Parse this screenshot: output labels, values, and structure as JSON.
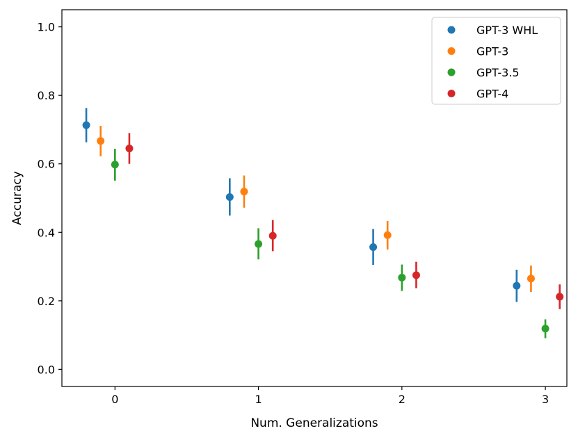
{
  "chart_data": {
    "type": "scatter",
    "title": "",
    "xlabel": "Num. Generalizations",
    "ylabel": "Accuracy",
    "xlim": [
      -0.37,
      3.15
    ],
    "ylim": [
      -0.05,
      1.05
    ],
    "xticks": [
      {
        "value": 0,
        "label": "0"
      },
      {
        "value": 1,
        "label": "1"
      },
      {
        "value": 2,
        "label": "2"
      },
      {
        "value": 3,
        "label": "3"
      }
    ],
    "yticks": [
      {
        "value": 0.0,
        "label": "0.0"
      },
      {
        "value": 0.2,
        "label": "0.2"
      },
      {
        "value": 0.4,
        "label": "0.4"
      },
      {
        "value": 0.6,
        "label": "0.6"
      },
      {
        "value": 0.8,
        "label": "0.8"
      },
      {
        "value": 1.0,
        "label": "1.0"
      }
    ],
    "grid": false,
    "legend_position": "top-right",
    "series": [
      {
        "name": "GPT-3 WHL",
        "color": "#1f77b4",
        "points": [
          {
            "x": -0.2,
            "y": 0.713,
            "low": 0.663,
            "high": 0.763
          },
          {
            "x": 0.8,
            "y": 0.503,
            "low": 0.449,
            "high": 0.558
          },
          {
            "x": 1.8,
            "y": 0.357,
            "low": 0.305,
            "high": 0.41
          },
          {
            "x": 2.8,
            "y": 0.244,
            "low": 0.197,
            "high": 0.291
          }
        ]
      },
      {
        "name": "GPT-3",
        "color": "#ff7f0e",
        "points": [
          {
            "x": -0.1,
            "y": 0.667,
            "low": 0.622,
            "high": 0.711
          },
          {
            "x": 0.9,
            "y": 0.519,
            "low": 0.472,
            "high": 0.566
          },
          {
            "x": 1.9,
            "y": 0.392,
            "low": 0.35,
            "high": 0.433
          },
          {
            "x": 2.9,
            "y": 0.265,
            "low": 0.226,
            "high": 0.303
          }
        ]
      },
      {
        "name": "GPT-3.5",
        "color": "#2ca02c",
        "points": [
          {
            "x": 0.0,
            "y": 0.598,
            "low": 0.551,
            "high": 0.644
          },
          {
            "x": 1.0,
            "y": 0.366,
            "low": 0.321,
            "high": 0.412
          },
          {
            "x": 2.0,
            "y": 0.268,
            "low": 0.229,
            "high": 0.306
          },
          {
            "x": 3.0,
            "y": 0.119,
            "low": 0.091,
            "high": 0.146
          }
        ]
      },
      {
        "name": "GPT-4",
        "color": "#d62728",
        "points": [
          {
            "x": 0.1,
            "y": 0.645,
            "low": 0.6,
            "high": 0.69
          },
          {
            "x": 1.1,
            "y": 0.39,
            "low": 0.345,
            "high": 0.436
          },
          {
            "x": 2.1,
            "y": 0.275,
            "low": 0.237,
            "high": 0.314
          },
          {
            "x": 3.1,
            "y": 0.212,
            "low": 0.176,
            "high": 0.248
          }
        ]
      }
    ]
  }
}
